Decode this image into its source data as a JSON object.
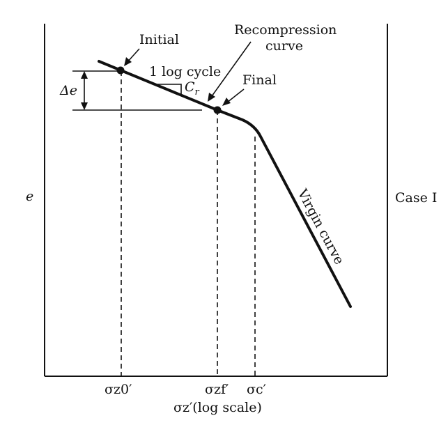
{
  "diagram": {
    "y_axis_label": "e",
    "case_label": "Case I",
    "initial_label": "Initial",
    "final_label": "Final",
    "recompression_label_line1": "Recompression",
    "recompression_label_line2": "curve",
    "log_cycle_label": "1 log cycle",
    "cr_label": "C",
    "cr_sub": "r",
    "delta_e_label": "Δe",
    "virgin_label": "Virgin curve",
    "x_axis_label": "σz′(log scale)",
    "tick_sigma_z0": "σz0′",
    "tick_sigma_zf": "σzf′",
    "tick_sigma_c": "σc′",
    "line_color": "#111111"
  }
}
